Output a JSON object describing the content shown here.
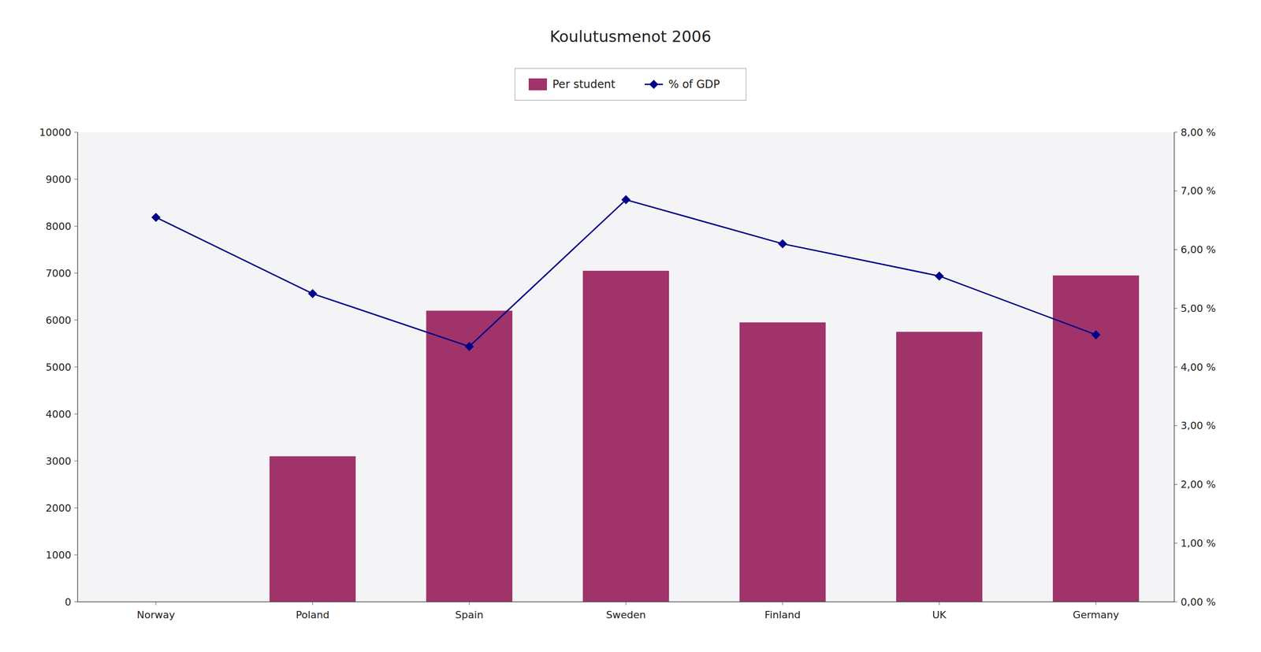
{
  "chart_data": {
    "type": "bar",
    "title": "Koulutusmenot 2006",
    "categories": [
      "Norway",
      "Poland",
      "Spain",
      "Sweden",
      "Finland",
      "UK",
      "Germany"
    ],
    "series": [
      {
        "name": "Per student",
        "type": "bar",
        "color": "#A0336A",
        "values": [
          0,
          3100,
          6200,
          7050,
          5950,
          5750,
          6950
        ]
      },
      {
        "name": "% of GDP",
        "type": "line",
        "axis": "y2",
        "color": "#00008B",
        "marker": "diamond",
        "values": [
          6.55,
          5.25,
          4.35,
          6.85,
          6.1,
          5.55,
          4.55
        ]
      }
    ],
    "ylim": [
      0,
      10000
    ],
    "yticks": [
      0,
      1000,
      2000,
      3000,
      4000,
      5000,
      6000,
      7000,
      8000,
      9000,
      10000
    ],
    "y2lim": [
      0,
      8.0
    ],
    "y2ticks": [
      {
        "value": 0.0,
        "label": "0,00 %"
      },
      {
        "value": 1.0,
        "label": "1,00 %"
      },
      {
        "value": 2.0,
        "label": "2,00 %"
      },
      {
        "value": 3.0,
        "label": "3,00 %"
      },
      {
        "value": 4.0,
        "label": "4,00 %"
      },
      {
        "value": 5.0,
        "label": "5,00 %"
      },
      {
        "value": 6.0,
        "label": "6,00 %"
      },
      {
        "value": 7.0,
        "label": "7,00 %"
      },
      {
        "value": 8.0,
        "label": "8,00 %"
      }
    ],
    "grid": false,
    "legend": "top"
  }
}
